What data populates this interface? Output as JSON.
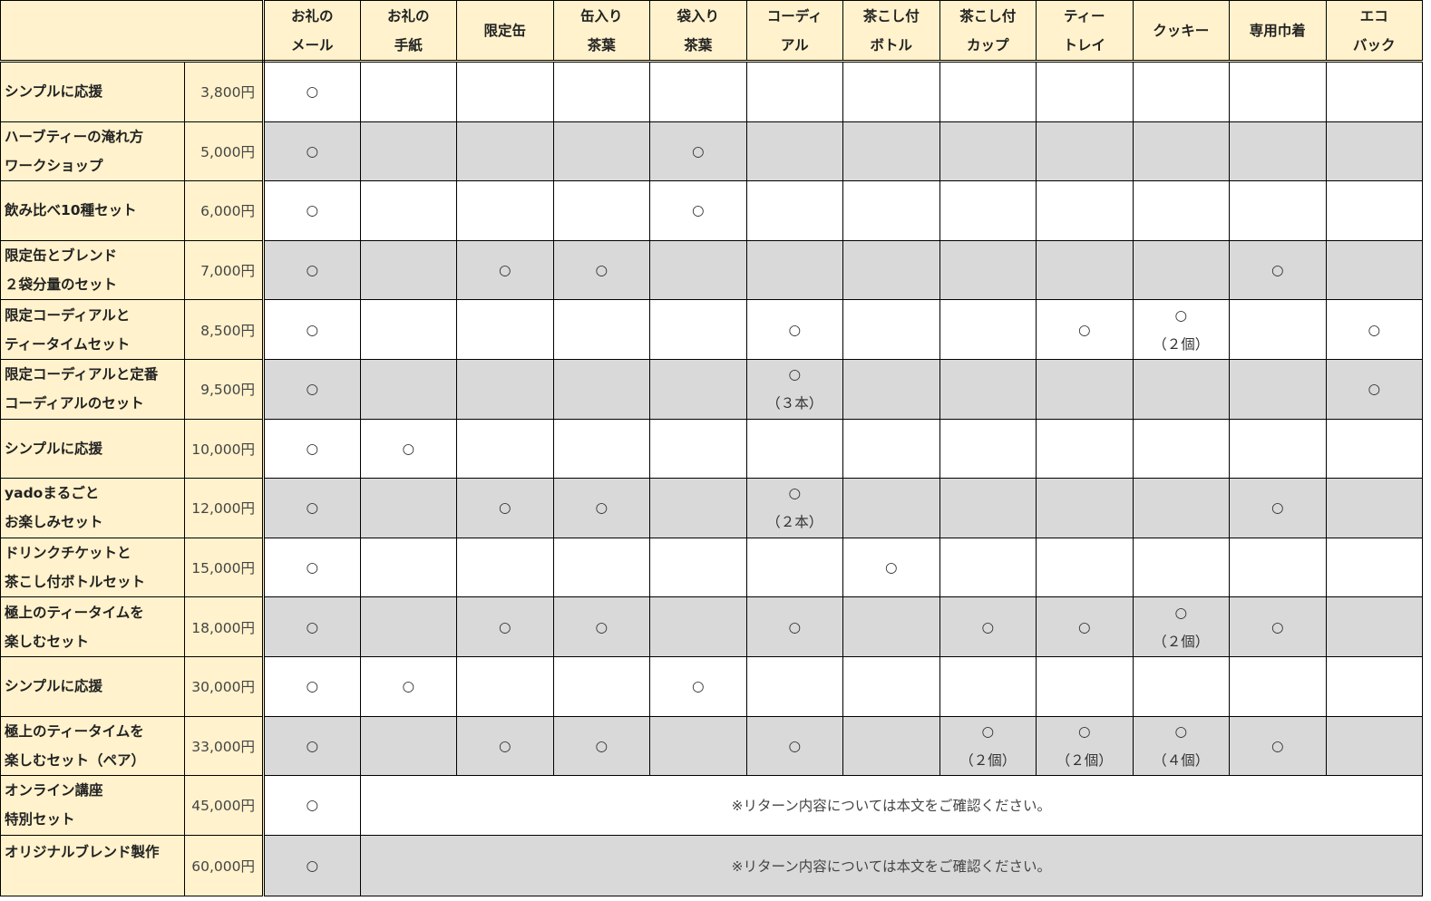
{
  "colors": {
    "header_bg": "#FFF2CC",
    "alt_row_bg": "#D9D9D9"
  },
  "headers": [
    "お礼の\nメール",
    "お礼の\n手紙",
    "限定缶",
    "缶入り\n茶葉",
    "袋入り\n茶葉",
    "コーディ\nアル",
    "茶こし付\nボトル",
    "茶こし付\nカップ",
    "ティー\nトレイ",
    "クッキー",
    "専用巾着",
    "エコ\nバック"
  ],
  "rows": [
    {
      "name": "シンプルに応援",
      "price": "3,800円",
      "cells": [
        "○",
        "",
        "",
        "",
        "",
        "",
        "",
        "",
        "",
        "",
        "",
        ""
      ]
    },
    {
      "name": "ハーブティーの淹れ方\nワークショップ",
      "price": "5,000円",
      "cells": [
        "○",
        "",
        "",
        "",
        "○",
        "",
        "",
        "",
        "",
        "",
        "",
        ""
      ]
    },
    {
      "name": "飲み比べ10種セット",
      "price": "6,000円",
      "cells": [
        "○",
        "",
        "",
        "",
        "○",
        "",
        "",
        "",
        "",
        "",
        "",
        ""
      ]
    },
    {
      "name": "限定缶とブレンド\n２袋分量のセット",
      "price": "7,000円",
      "cells": [
        "○",
        "",
        "○",
        "○",
        "",
        "",
        "",
        "",
        "",
        "",
        "○",
        ""
      ]
    },
    {
      "name": "限定コーディアルと\nティータイムセット",
      "price": "8,500円",
      "cells": [
        "○",
        "",
        "",
        "",
        "",
        "○",
        "",
        "",
        "○",
        "○\n（２個）",
        "",
        "○"
      ]
    },
    {
      "name": "限定コーディアルと定番\nコーディアルのセット",
      "price": "9,500円",
      "cells": [
        "○",
        "",
        "",
        "",
        "",
        "○\n（３本）",
        "",
        "",
        "",
        "",
        "",
        "○"
      ]
    },
    {
      "name": "シンプルに応援",
      "price": "10,000円",
      "cells": [
        "○",
        "○",
        "",
        "",
        "",
        "",
        "",
        "",
        "",
        "",
        "",
        ""
      ]
    },
    {
      "name": "yadoまるごと\nお楽しみセット",
      "price": "12,000円",
      "cells": [
        "○",
        "",
        "○",
        "○",
        "",
        "○\n（２本）",
        "",
        "",
        "",
        "",
        "○",
        ""
      ]
    },
    {
      "name": "ドリンクチケットと\n茶こし付ボトルセット",
      "price": "15,000円",
      "cells": [
        "○",
        "",
        "",
        "",
        "",
        "",
        "○",
        "",
        "",
        "",
        "",
        ""
      ]
    },
    {
      "name": "極上のティータイムを\n楽しむセット",
      "price": "18,000円",
      "cells": [
        "○",
        "",
        "○",
        "○",
        "",
        "○",
        "",
        "○",
        "○",
        "○\n（２個）",
        "○",
        ""
      ]
    },
    {
      "name": "シンプルに応援",
      "price": "30,000円",
      "cells": [
        "○",
        "○",
        "",
        "",
        "○",
        "",
        "",
        "",
        "",
        "",
        "",
        ""
      ]
    },
    {
      "name": "極上のティータイムを\n楽しむセット（ペア）",
      "price": "33,000円",
      "cells": [
        "○",
        "",
        "○",
        "○",
        "",
        "○",
        "",
        "○\n（２個）",
        "○\n（２個）",
        "○\n（４個）",
        "○",
        ""
      ]
    },
    {
      "name": "オンライン講座\n特別セット",
      "price": "45,000円",
      "cells": [
        "○"
      ],
      "note": "※リターン内容については本文をご確認ください。"
    },
    {
      "name": "オリジナルブレンド製作",
      "price": "60,000円",
      "cells": [
        "○"
      ],
      "note": "※リターン内容については本文をご確認ください。",
      "top": true
    }
  ]
}
